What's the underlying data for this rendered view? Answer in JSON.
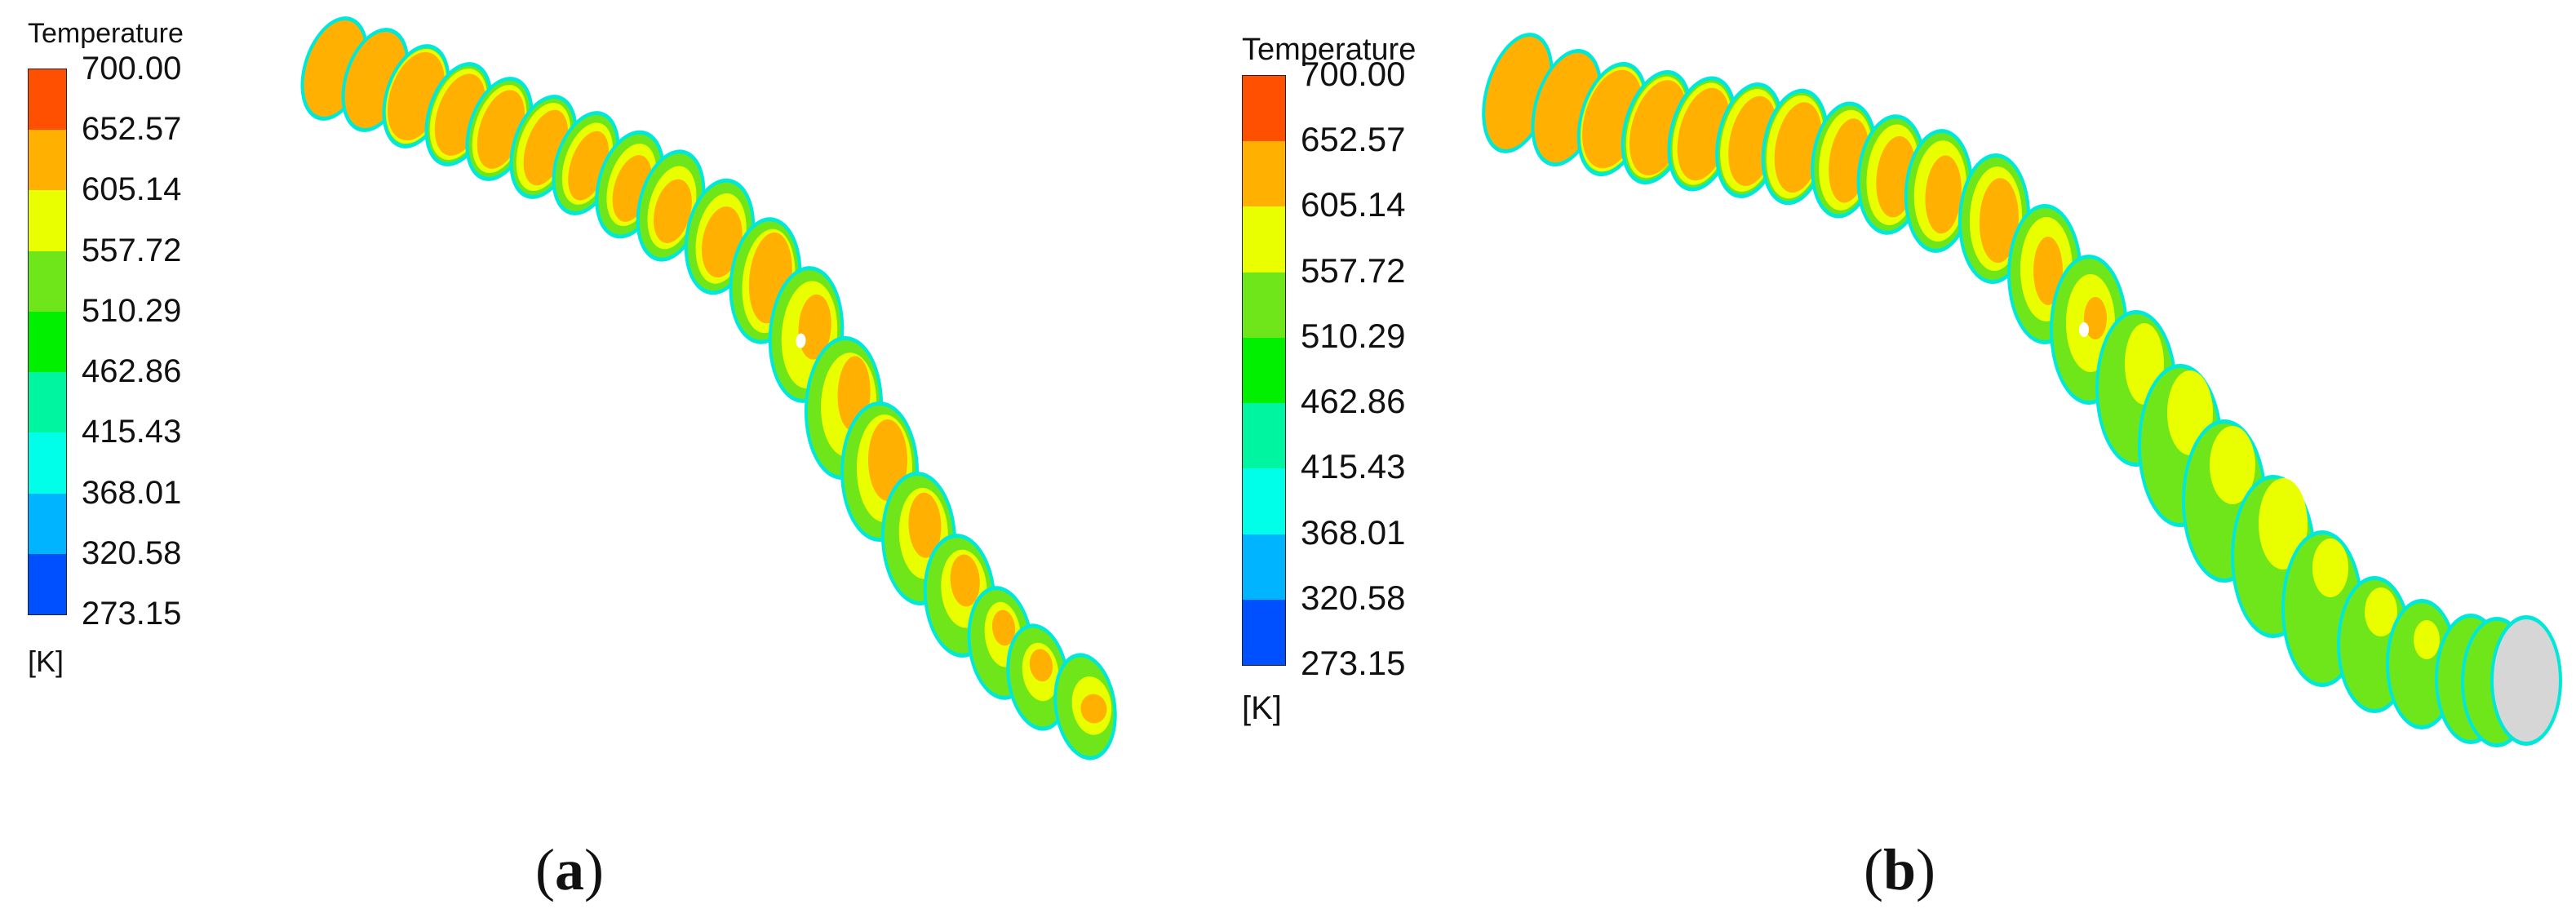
{
  "legend": {
    "title": "Temperature",
    "unit": "[K]",
    "ticks": [
      "700.00",
      "652.57",
      "605.14",
      "557.72",
      "510.29",
      "462.86",
      "415.43",
      "368.01",
      "320.58",
      "273.15"
    ],
    "band_colors": [
      "#ff4f00",
      "#ffb000",
      "#e9ff00",
      "#6fe61a",
      "#00f000",
      "#00f5a0",
      "#00ffe8",
      "#00b4ff",
      "#0050ff"
    ]
  },
  "panels": [
    {
      "id": "a",
      "label_open": "(",
      "label_letter": "a",
      "label_close": ")"
    },
    {
      "id": "b",
      "label_open": "(",
      "label_letter": "b",
      "label_close": ")"
    }
  ],
  "colors": {
    "orange": "#ffb000",
    "yellow": "#e9ff00",
    "green": "#6fe61a",
    "edge": "#00e8d8",
    "outlet_gray": "#d6d6d6"
  }
}
